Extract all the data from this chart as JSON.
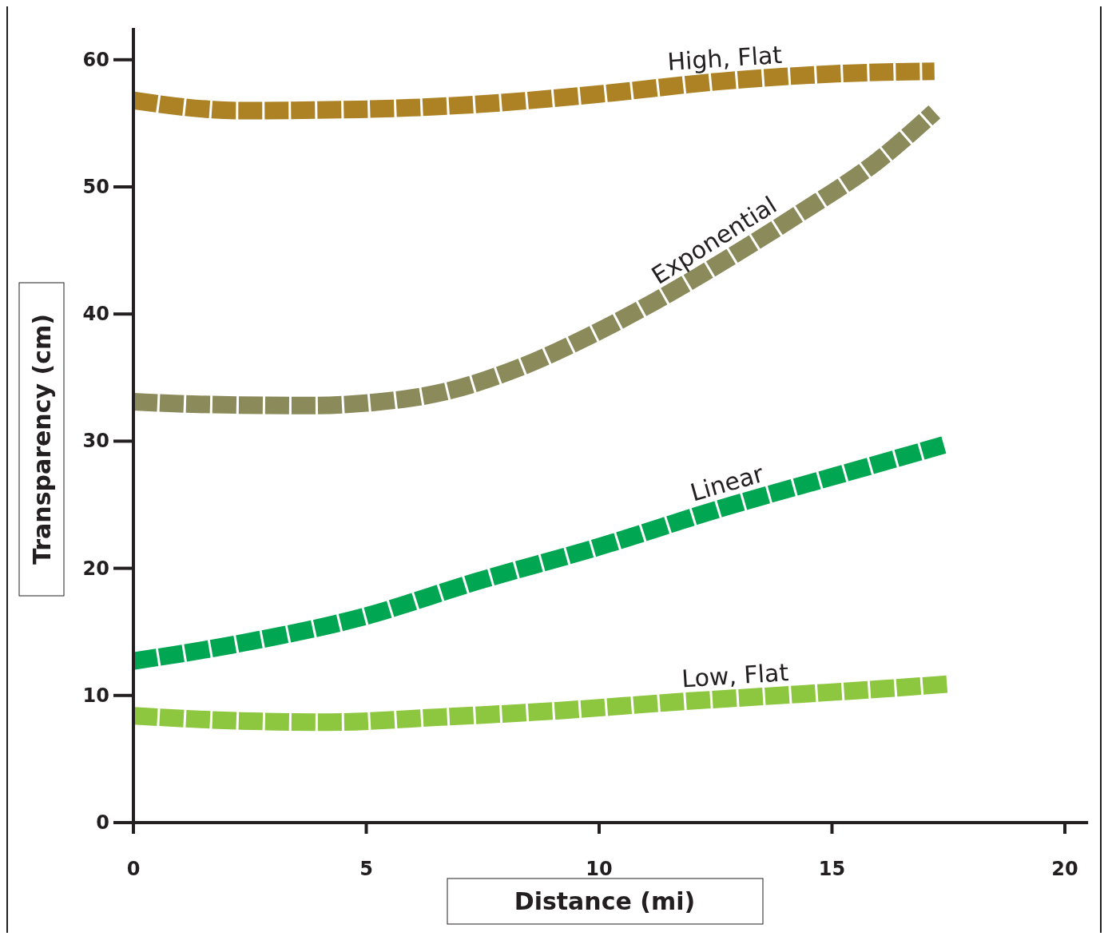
{
  "chart_data": {
    "type": "line",
    "xlabel": "Distance (mi)",
    "ylabel": "Transparency (cm)",
    "xlim": [
      0,
      20.5
    ],
    "ylim": [
      0,
      62.5
    ],
    "xticks": [
      0,
      5,
      10,
      15,
      20
    ],
    "yticks": [
      0,
      10,
      20,
      30,
      40,
      50,
      60
    ],
    "grid": false,
    "line_style": "dashed",
    "series": [
      {
        "name": "High, Flat",
        "color": "#ad8225",
        "x": [
          0,
          2.3,
          4.85,
          7.4,
          10,
          12.6,
          15.1,
          17.2
        ],
        "values": [
          56.8,
          56.0,
          56.1,
          56.5,
          57.3,
          58.3,
          58.9,
          59.1
        ]
      },
      {
        "name": "Exponential",
        "color": "#8b8a5a",
        "x": [
          0,
          1.4,
          3.8,
          5,
          6.7,
          8.3,
          9.8,
          11.2,
          12.6,
          14.3,
          16,
          17.2
        ],
        "values": [
          33.1,
          32.9,
          32.8,
          33.0,
          33.9,
          35.8,
          38.3,
          41.0,
          44.0,
          47.9,
          52.1,
          55.9
        ]
      },
      {
        "name": "Linear",
        "color": "#00a651",
        "x": [
          0,
          2.3,
          4.85,
          7.4,
          10,
          12.6,
          15.1,
          17.4
        ],
        "values": [
          12.7,
          14.1,
          16.1,
          19.0,
          21.7,
          24.7,
          27.3,
          29.7
        ]
      },
      {
        "name": "Low, Flat",
        "color": "#8dc63f",
        "x": [
          0,
          2.3,
          4.2,
          6.6,
          9.1,
          11.7,
          14.3,
          16,
          17.5
        ],
        "values": [
          8.4,
          8.0,
          7.9,
          8.3,
          8.8,
          9.5,
          10.1,
          10.5,
          10.9
        ]
      }
    ]
  }
}
